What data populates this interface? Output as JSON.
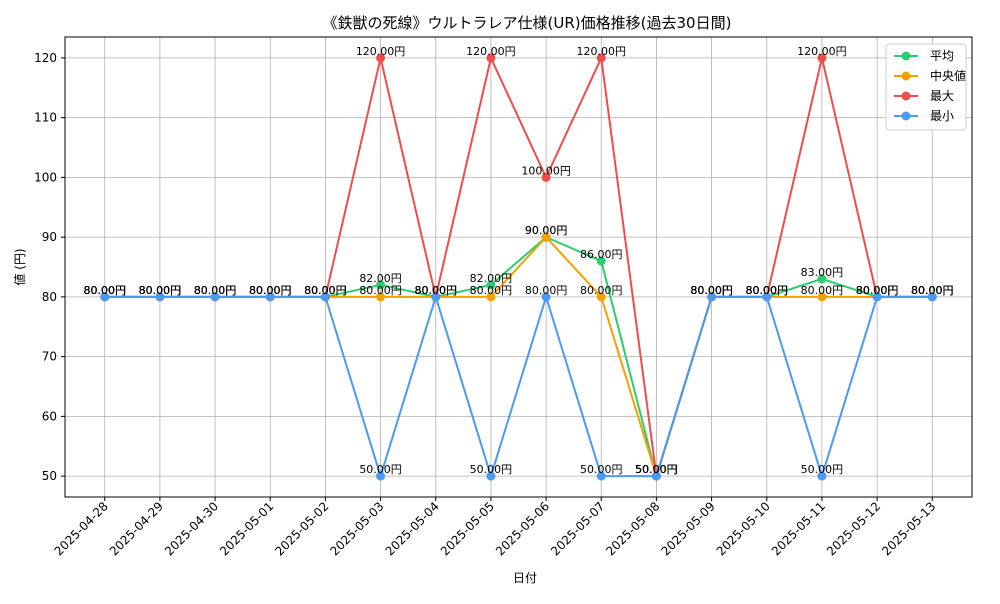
{
  "chart_data": {
    "type": "line",
    "title": "《鉄獣の死線》ウルトラレア仕様(UR)価格推移(過去30日間)",
    "xlabel": "日付",
    "ylabel": "値 (円)",
    "ylim": [
      46.5,
      123.5
    ],
    "yticks": [
      50,
      60,
      70,
      80,
      90,
      100,
      110,
      120
    ],
    "grid": true,
    "legend_position": "top-right",
    "value_suffix": "円",
    "categories": [
      "2025-04-28",
      "2025-04-29",
      "2025-04-30",
      "2025-05-01",
      "2025-05-02",
      "2025-05-03",
      "2025-05-04",
      "2025-05-05",
      "2025-05-06",
      "2025-05-07",
      "2025-05-08",
      "2025-05-09",
      "2025-05-10",
      "2025-05-11",
      "2025-05-12",
      "2025-05-13"
    ],
    "series": [
      {
        "name": "平均",
        "color": "#2ecc71",
        "values": [
          80,
          80,
          80,
          80,
          80,
          82,
          80,
          82,
          90,
          86,
          50,
          80,
          80,
          83,
          80,
          80
        ]
      },
      {
        "name": "中央値",
        "color": "#f5a000",
        "values": [
          80,
          80,
          80,
          80,
          80,
          80,
          80,
          80,
          90,
          80,
          50,
          80,
          80,
          80,
          80,
          80
        ]
      },
      {
        "name": "最大",
        "color": "#ef4c4c",
        "values": [
          80,
          80,
          80,
          80,
          80,
          120,
          80,
          120,
          100,
          120,
          50,
          80,
          80,
          120,
          80,
          80
        ]
      },
      {
        "name": "最小",
        "color": "#4a9af5",
        "values": [
          80,
          80,
          80,
          80,
          80,
          50,
          80,
          50,
          80,
          50,
          50,
          80,
          80,
          50,
          80,
          80
        ]
      }
    ]
  }
}
